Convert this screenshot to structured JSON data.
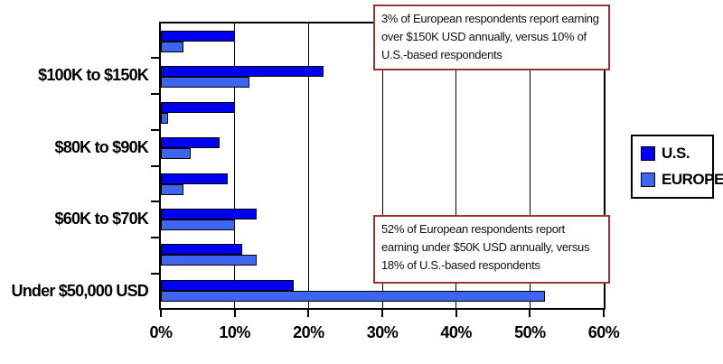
{
  "chart_data": {
    "type": "bar",
    "orientation": "horizontal",
    "title": "",
    "xlabel": "",
    "ylabel": "",
    "x_axis": {
      "min": 0,
      "max": 60,
      "unit": "%",
      "ticks": [
        "0%",
        "10%",
        "20%",
        "30%",
        "40%",
        "50%",
        "60%"
      ]
    },
    "grid": "vertical gridlines every 10%",
    "legend_position": "right of plot",
    "categories": [
      "",
      "$100K to $150K",
      "",
      "$80K to $90K",
      "",
      "$60K to $70K",
      "",
      "Under $50,000 USD"
    ],
    "series": [
      {
        "name": "U.S.",
        "color": "#0000F0",
        "values": [
          10,
          22,
          10,
          8,
          9,
          13,
          11,
          18
        ]
      },
      {
        "name": "EUROPE",
        "color": "#3D65F0",
        "values": [
          3,
          12,
          1,
          4,
          3,
          10,
          13,
          52
        ]
      }
    ],
    "annotations": [
      {
        "text": "3% of European respondents report earning over $150K USD annually, versus 10% of U.S.-based respondents",
        "border_color": "#A03232"
      },
      {
        "text": "52% of European respondents report earning under $50K USD annually, versus 18% of U.S.-based respondents",
        "border_color": "#A03232"
      }
    ],
    "colors": {
      "axis": "#000000",
      "background": "#ffffff",
      "text": "#000000"
    }
  }
}
